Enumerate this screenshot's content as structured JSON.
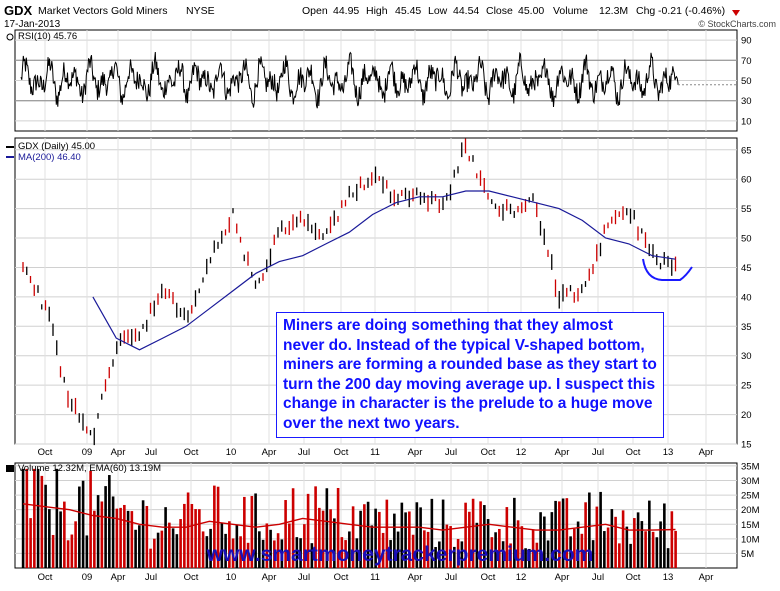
{
  "header": {
    "symbol": "GDX",
    "name": "Market Vectors Gold Miners",
    "exchange": "NYSE",
    "date": "17-Jan-2013",
    "open_label": "Open",
    "open": "44.95",
    "high_label": "High",
    "high": "45.45",
    "low_label": "Low",
    "low": "44.54",
    "close_label": "Close",
    "close": "45.00",
    "volume_label": "Volume",
    "volume": "12.3M",
    "chg_label": "Chg",
    "chg": "-0.21 (-0.46%)",
    "watermark": "© StockCharts.com"
  },
  "annotation": "Miners are doing something that they almost never do. Instead of the typical V-shaped bottom, miners are forming a rounded base as they start to turn the 200 day moving average up. I suspect this change in character is the prelude to a huge move over the next two years.",
  "footer_url": "www.smartmoneytrackerpremium.com",
  "colors": {
    "price_up": "#000000",
    "price_down": "#cc0000",
    "ma": "#1a1a99",
    "rsi": "#000000",
    "volume_up": "#000000",
    "volume_down": "#cc0000",
    "ema": "#cc0000",
    "annotation_text": "#1010ff",
    "url_text": "#1a0fb8",
    "base_curve": "#1a1aff"
  },
  "chart_data": [
    {
      "type": "line",
      "panel": "RSI",
      "legend": "RSI(10) 45.76",
      "ylim": [
        0,
        100
      ],
      "yticks": [
        10,
        30,
        50,
        70,
        90
      ],
      "reference_lines": [
        30,
        70
      ],
      "last_value": 45.76,
      "grid": true
    },
    {
      "type": "line",
      "panel": "Price",
      "legend_price": "GDX (Daily) 45.00",
      "legend_ma": "MA(200) 46.40",
      "ylim": [
        15,
        67
      ],
      "yticks": [
        15,
        20,
        25,
        30,
        35,
        40,
        45,
        50,
        55,
        60,
        65
      ],
      "xticks": [
        "Oct",
        "09",
        "Apr",
        "Jul",
        "Oct",
        "10",
        "Apr",
        "Jul",
        "Oct",
        "11",
        "Apr",
        "Jul",
        "Oct",
        "12",
        "Apr",
        "Jul",
        "Oct",
        "13",
        "Apr"
      ],
      "x": [
        "2008-07",
        "2008-09",
        "2008-10",
        "2008-11",
        "2009-01",
        "2009-03",
        "2009-05",
        "2009-07",
        "2009-09",
        "2009-12",
        "2010-02",
        "2010-04",
        "2010-06",
        "2010-08",
        "2010-10",
        "2010-12",
        "2011-02",
        "2011-04",
        "2011-06",
        "2011-09",
        "2011-10",
        "2011-12",
        "2012-02",
        "2012-05",
        "2012-07",
        "2012-09",
        "2012-10",
        "2012-12",
        "2013-01"
      ],
      "series": [
        {
          "name": "GDX (Daily)",
          "values": [
            45,
            38,
            22,
            16,
            32,
            34,
            41,
            36,
            46,
            54,
            41,
            51,
            53,
            50,
            57,
            61,
            57,
            58,
            55,
            66,
            56,
            55,
            56,
            40,
            41,
            51,
            55,
            47,
            45
          ]
        },
        {
          "name": "MA(200)",
          "values": [
            null,
            null,
            null,
            40,
            33,
            31,
            33,
            35,
            38,
            41,
            44,
            46,
            47,
            49,
            51,
            54,
            56,
            57,
            57,
            58,
            58,
            57,
            56,
            55,
            53,
            50,
            49,
            47,
            46.4
          ]
        }
      ],
      "grid": true
    },
    {
      "type": "bar",
      "panel": "Volume",
      "legend": "Volume 12.32M, EMA(60) 13.19M",
      "ylim": [
        0,
        36
      ],
      "yticks": [
        "5M",
        "10M",
        "15M",
        "20M",
        "25M",
        "30M",
        "35M"
      ],
      "y_unit": "M",
      "ema_values": [
        22,
        21,
        20,
        18,
        17,
        15,
        14,
        14,
        16,
        15,
        14,
        15,
        17,
        16,
        15,
        14,
        14,
        14,
        13,
        14,
        15,
        14,
        13,
        13,
        14,
        15,
        13,
        13,
        13.19
      ],
      "last_volume": 12.32,
      "grid": true
    }
  ]
}
